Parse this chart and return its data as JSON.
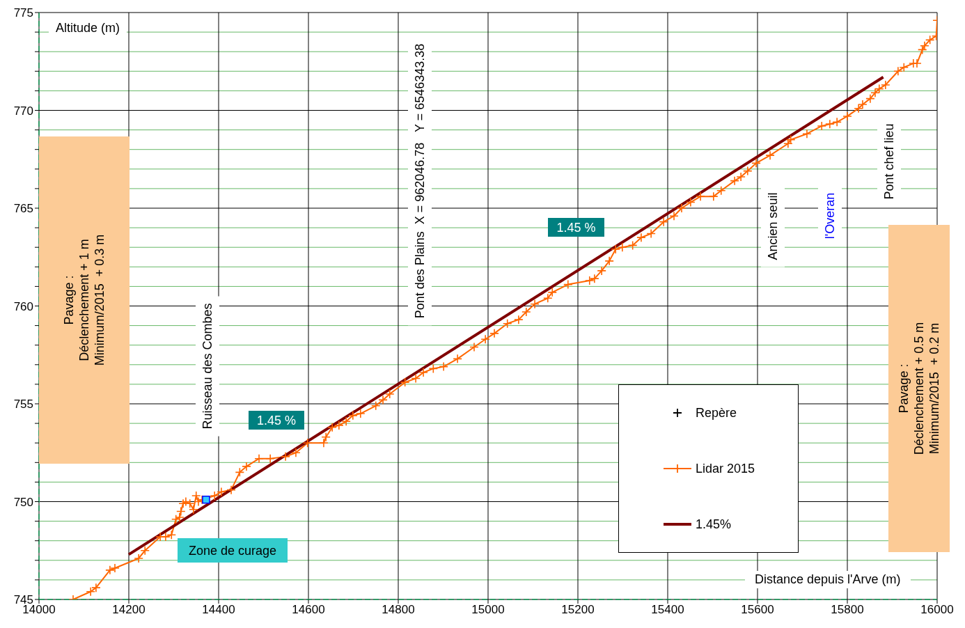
{
  "chart_data": {
    "type": "line",
    "xlabel": "Distance depuis l'Arve (m)",
    "ylabel": "Altitude (m)",
    "xlim": [
      14000,
      16000
    ],
    "xticks": [
      14000,
      14200,
      14400,
      14600,
      14800,
      15000,
      15200,
      15400,
      15600,
      15800,
      16000
    ],
    "ylim": [
      745,
      775
    ],
    "yticks": [
      745,
      {
        "value": 746,
        "label": null
      },
      {
        "value": 747,
        "label": null
      },
      {
        "value": 748,
        "label": null
      },
      {
        "value": 749,
        "label": null
      },
      750,
      {
        "value": 751,
        "label": null
      },
      {
        "value": 752,
        "label": null
      },
      {
        "value": 753,
        "label": null
      },
      {
        "value": 754,
        "label": null
      },
      755,
      {
        "value": 756,
        "label": null
      },
      {
        "value": 757,
        "label": null
      },
      {
        "value": 758,
        "label": null
      },
      {
        "value": 759,
        "label": null
      },
      760,
      {
        "value": 761,
        "label": null
      },
      {
        "value": 762,
        "label": null
      },
      {
        "value": 763,
        "label": null
      },
      {
        "value": 764,
        "label": null
      },
      765,
      {
        "value": 766,
        "label": null
      },
      {
        "value": 767,
        "label": null
      },
      {
        "value": 768,
        "label": null
      },
      {
        "value": 769,
        "label": null
      },
      770,
      {
        "value": 771,
        "label": null
      },
      {
        "value": 772,
        "label": null
      },
      {
        "value": 773,
        "label": null
      },
      {
        "value": 774,
        "label": null
      },
      775
    ],
    "grid": true,
    "legend": "bottom right",
    "series": [
      {
        "name": "Repère",
        "type": "scatter",
        "marker": "cross",
        "color": "#000000"
      },
      {
        "name": "Lidar 2015",
        "marker": "cross",
        "color": "#ff6600",
        "x": [
          14076,
          14115,
          14127,
          14158,
          14169,
          14222,
          14236,
          14270,
          14282,
          14295,
          14305,
          14313,
          14316,
          14321,
          14327,
          14336,
          14344,
          14350,
          14355,
          14363,
          14391,
          14406,
          14428,
          14447,
          14462,
          14490,
          14515,
          14549,
          14572,
          14598,
          14634,
          14639,
          14653,
          14668,
          14684,
          14699,
          14716,
          14750,
          14766,
          14781,
          14815,
          14839,
          14856,
          14878,
          14901,
          14932,
          14969,
          14994,
          15014,
          15043,
          15068,
          15085,
          15104,
          15133,
          15143,
          15178,
          15226,
          15237,
          15253,
          15270,
          15284,
          15299,
          15322,
          15341,
          15363,
          15391,
          15414,
          15431,
          15451,
          15473,
          15502,
          15519,
          15549,
          15563,
          15578,
          15597,
          15628,
          15668,
          15674,
          15710,
          15743,
          15761,
          15777,
          15800,
          15825,
          15834,
          15851,
          15862,
          15871,
          15885,
          15913,
          15926,
          15947,
          15955,
          15967,
          15972,
          15984,
          15998,
          16000
        ],
        "values": [
          745.0,
          745.4,
          745.6,
          746.5,
          746.6,
          747.1,
          747.5,
          748.2,
          748.2,
          748.3,
          749.1,
          749.2,
          749.5,
          749.9,
          750.0,
          749.9,
          749.6,
          750.3,
          750.0,
          750.1,
          750.3,
          750.5,
          750.6,
          751.5,
          751.8,
          752.2,
          752.2,
          752.3,
          752.5,
          753.0,
          753.0,
          753.3,
          753.8,
          753.9,
          754.1,
          754.4,
          754.5,
          754.9,
          755.2,
          755.5,
          756.1,
          756.3,
          756.6,
          756.8,
          756.9,
          757.3,
          757.9,
          758.3,
          758.6,
          759.1,
          759.3,
          759.7,
          760.1,
          760.4,
          760.7,
          761.1,
          761.3,
          761.4,
          761.8,
          762.3,
          762.9,
          763.0,
          763.1,
          763.5,
          763.7,
          764.3,
          764.6,
          765.0,
          765.3,
          765.6,
          765.6,
          765.9,
          766.4,
          766.6,
          766.9,
          767.3,
          767.7,
          768.3,
          768.5,
          768.8,
          769.2,
          769.3,
          769.4,
          769.7,
          770.1,
          770.3,
          770.6,
          770.9,
          771.1,
          771.3,
          772.0,
          772.2,
          772.4,
          772.4,
          773.1,
          773.3,
          773.6,
          773.8,
          774.6
        ]
      },
      {
        "name": "1.45%",
        "marker": "none",
        "color": "#800000",
        "x": [
          14200,
          15880
        ],
        "values": [
          747.3,
          771.7
        ]
      },
      {
        "type": "scatter",
        "marker": "square",
        "color": "#33ccff",
        "x": [
          14372
        ],
        "values": [
          750.1
        ]
      }
    ],
    "annotations": [
      "Pavage :\nDéclenchement + 1 m\nMinimum/2015  + 0.3 m",
      "Pavage :\nDéclenchement + 0.5 m\nMinimum/2015  + 0.2 m",
      "Ruisseau des Combes",
      "Pont des Plains  X = 962046.78   Y = 6546343.38",
      "Ancien seuil",
      "l'Overan",
      "Pont chef lieu",
      "1.45 %",
      "1.45 %",
      "Zone de curage"
    ]
  }
}
